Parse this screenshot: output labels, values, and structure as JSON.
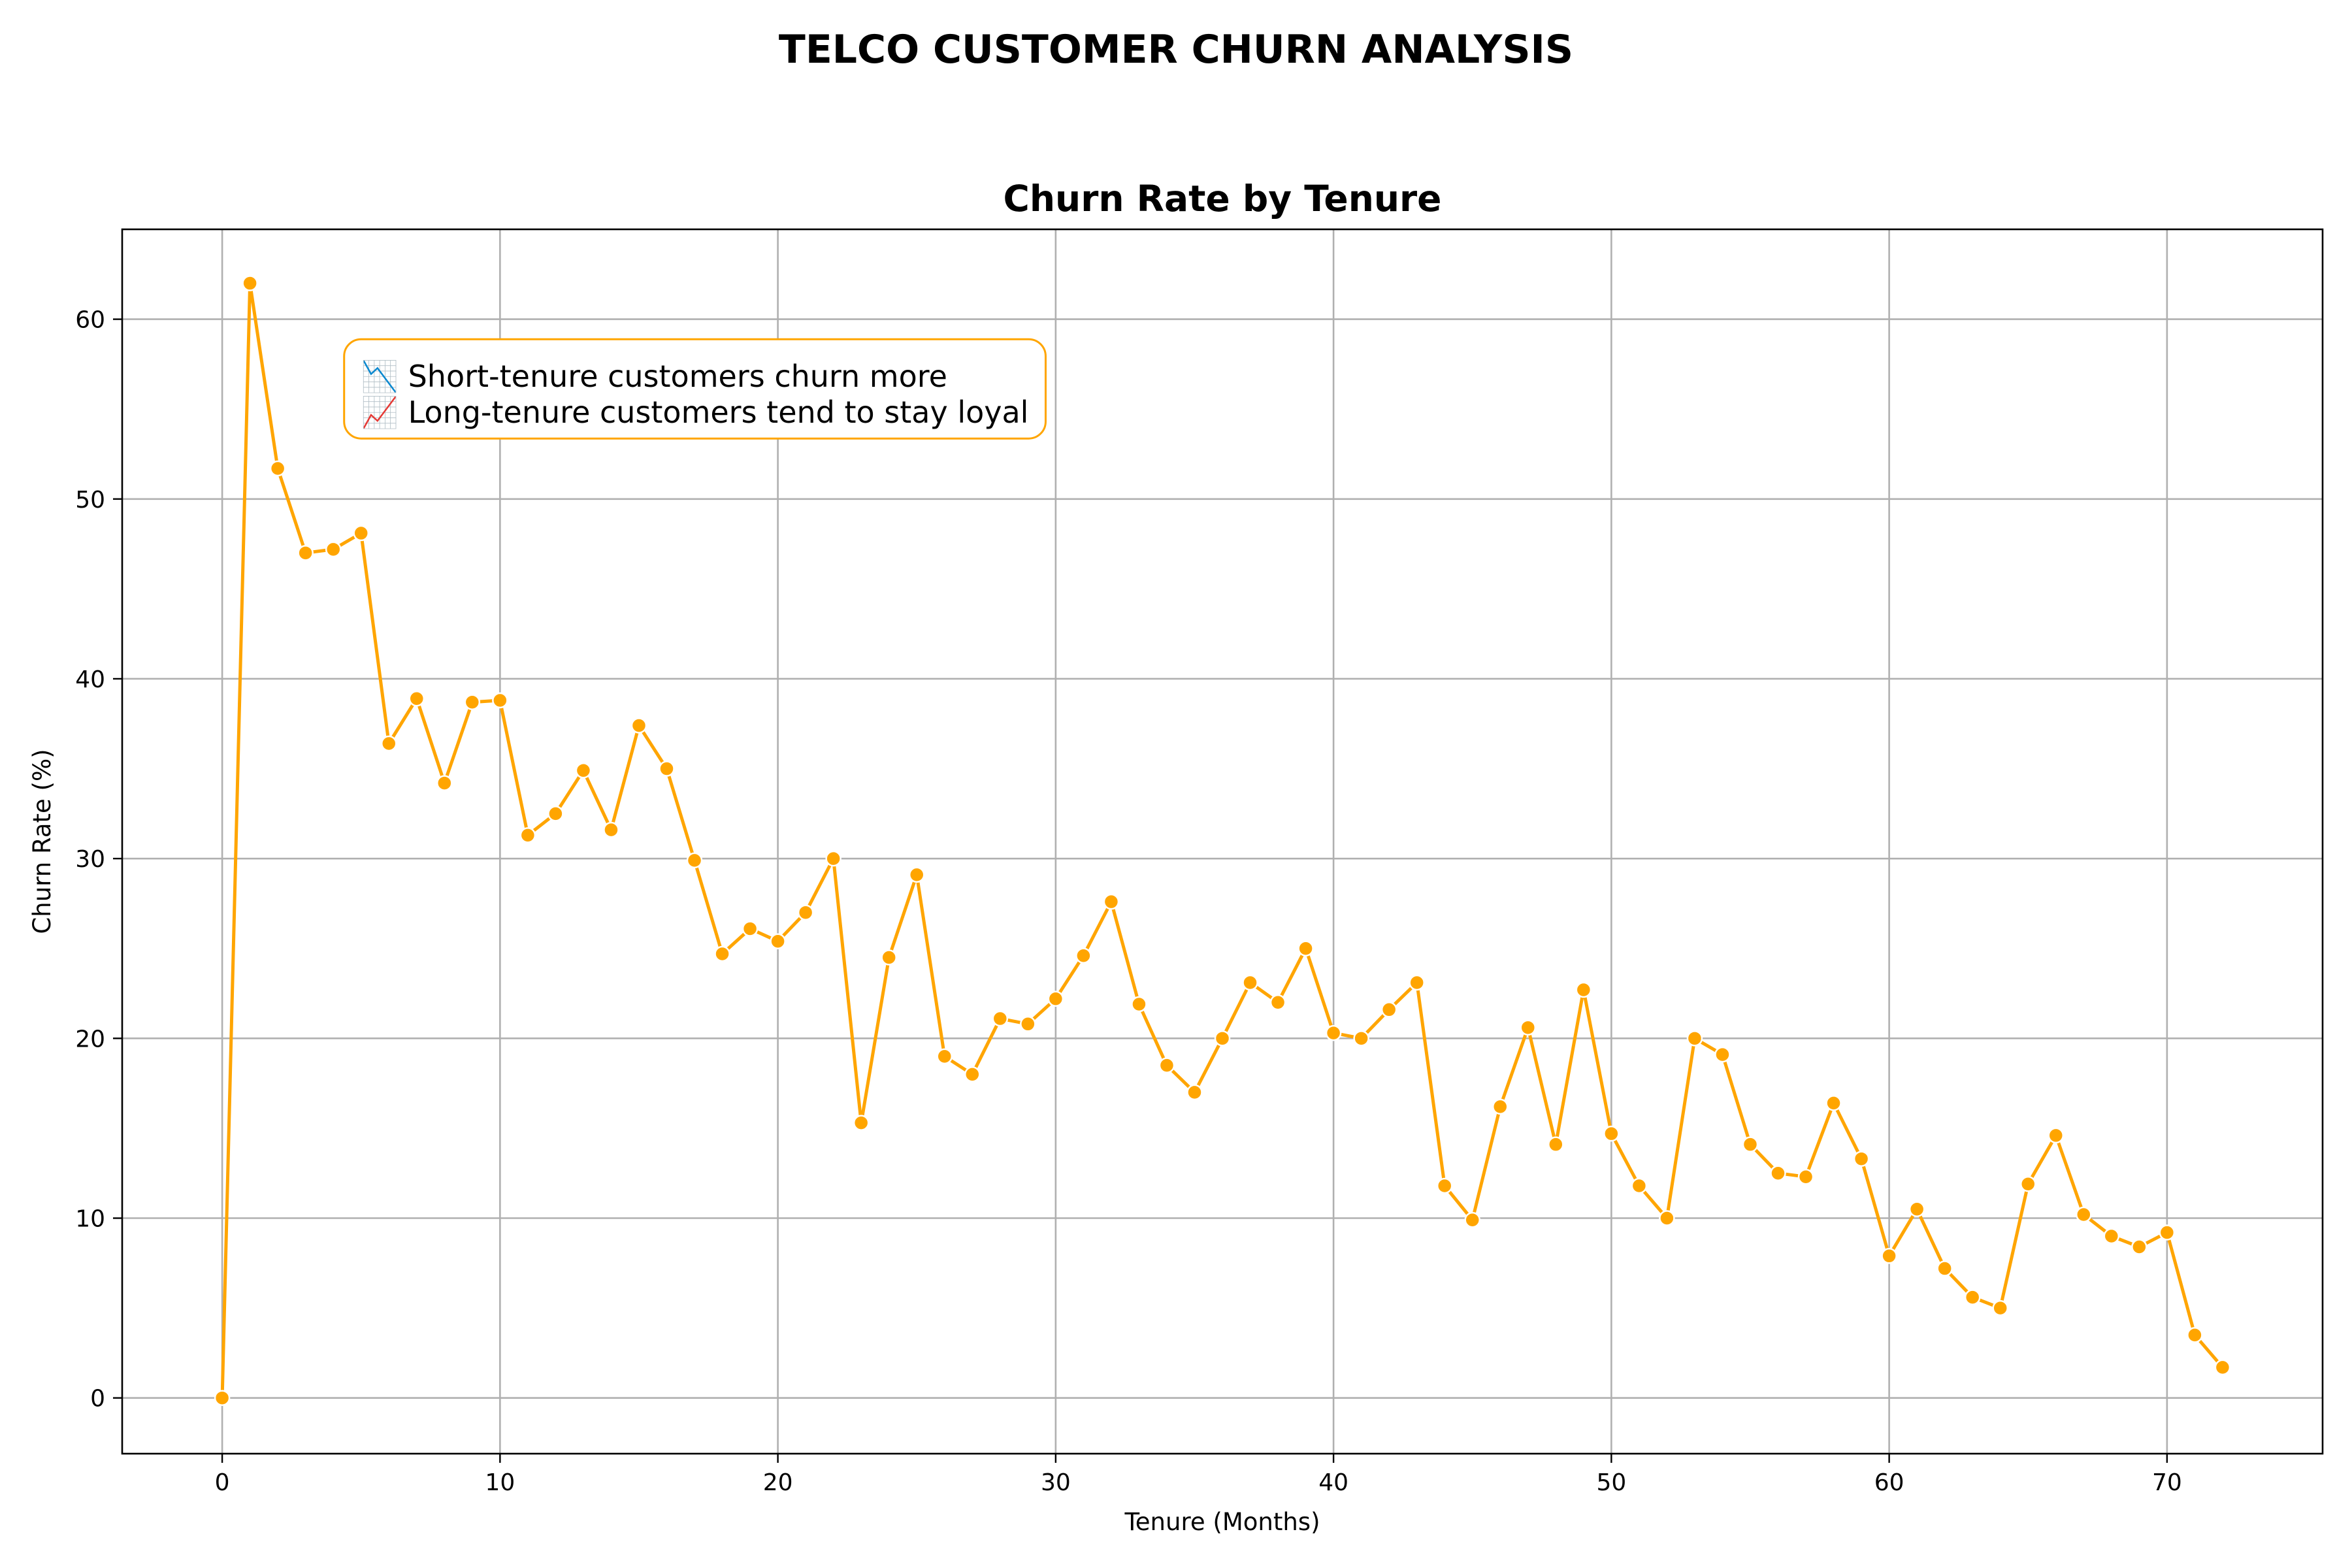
{
  "figure": {
    "suptitle": "TELCO CUSTOMER CHURN ANALYSIS"
  },
  "chart_data": {
    "type": "line",
    "title": "Churn Rate by Tenure",
    "xlabel": "Tenure (Months)",
    "ylabel": "Churn Rate (%)",
    "xlim": [
      -3.6,
      75.6
    ],
    "ylim": [
      -3.1,
      65.0
    ],
    "xticks": [
      0,
      10,
      20,
      30,
      40,
      50,
      60,
      70
    ],
    "yticks": [
      0,
      10,
      20,
      30,
      40,
      50,
      60
    ],
    "grid": true,
    "series": [
      {
        "name": "Churn Rate",
        "color": "#FFA500",
        "marker": "circle",
        "x": [
          0,
          1,
          2,
          3,
          4,
          5,
          6,
          7,
          8,
          9,
          10,
          11,
          12,
          13,
          14,
          15,
          16,
          17,
          18,
          19,
          20,
          21,
          22,
          23,
          24,
          25,
          26,
          27,
          28,
          29,
          30,
          31,
          32,
          33,
          34,
          35,
          36,
          37,
          38,
          39,
          40,
          41,
          42,
          43,
          44,
          45,
          46,
          47,
          48,
          49,
          50,
          51,
          52,
          53,
          54,
          55,
          56,
          57,
          58,
          59,
          60,
          61,
          62,
          63,
          64,
          65,
          66,
          67,
          68,
          69,
          70,
          71,
          72
        ],
        "values": [
          0.0,
          62.0,
          51.7,
          47.0,
          47.2,
          48.1,
          36.4,
          38.9,
          34.2,
          38.7,
          38.8,
          31.3,
          32.5,
          34.9,
          31.6,
          37.4,
          35.0,
          29.9,
          24.7,
          26.1,
          25.4,
          27.0,
          30.0,
          15.3,
          24.5,
          29.1,
          19.0,
          18.0,
          21.1,
          20.8,
          22.2,
          24.6,
          27.6,
          21.9,
          18.5,
          17.0,
          20.0,
          23.1,
          22.0,
          25.0,
          20.3,
          20.0,
          21.6,
          23.1,
          11.8,
          9.9,
          16.2,
          20.6,
          14.1,
          22.7,
          14.7,
          11.8,
          10.0,
          20.0,
          19.1,
          14.1,
          12.5,
          12.3,
          16.4,
          13.3,
          7.9,
          10.5,
          7.2,
          5.6,
          5.0,
          11.9,
          14.6,
          10.2,
          9.0,
          8.4,
          9.2,
          3.5,
          1.7
        ]
      }
    ],
    "annotation": {
      "lines": [
        "📉 Short-tenure customers churn more",
        "📈 Long-tenure customers tend to stay loyal"
      ],
      "anchor_x": 5,
      "anchor_y": 53.8,
      "border_color": "#FFA500"
    }
  }
}
